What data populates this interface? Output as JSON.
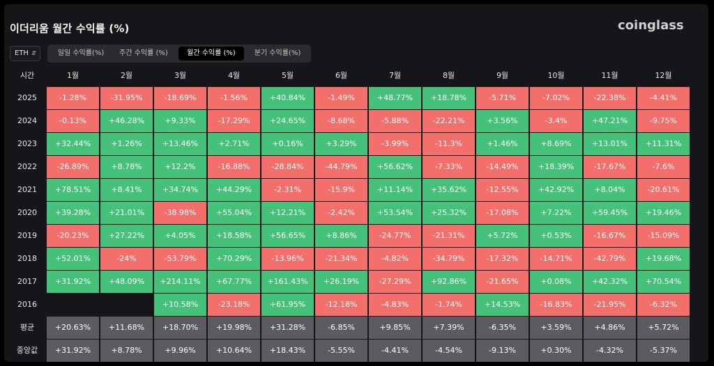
{
  "title": "이더리움 월간 수익률 (%)",
  "brand": "coinglass",
  "asset_select": {
    "value": "ETH",
    "chevron": "⌃⌄"
  },
  "tabs": [
    {
      "label": "일일 수익률(%)",
      "active": false
    },
    {
      "label": "주간 수익률 (%)",
      "active": false
    },
    {
      "label": "월간 수익률 (%)",
      "active": true
    },
    {
      "label": "분기 수익률(%)",
      "active": false
    }
  ],
  "colors": {
    "positive": "#45c17a",
    "negative": "#f26f6c",
    "summary": "#5c5c60"
  },
  "chart_data": {
    "type": "table",
    "corner_label": "시간",
    "columns": [
      "1월",
      "2월",
      "3월",
      "4월",
      "5월",
      "6월",
      "7월",
      "8월",
      "9월",
      "10월",
      "11월",
      "12월"
    ],
    "rows": [
      {
        "label": "2025",
        "values": [
          "-1.28%",
          "-31.95%",
          "-18.69%",
          "-1.56%",
          "+40.84%",
          "-1.49%",
          "+48.77%",
          "+18.78%",
          "-5.71%",
          "-7.02%",
          "-22.38%",
          "-4.41%"
        ]
      },
      {
        "label": "2024",
        "values": [
          "-0.13%",
          "+46.28%",
          "+9.33%",
          "-17.29%",
          "+24.65%",
          "-8.68%",
          "-5.88%",
          "-22.21%",
          "+3.56%",
          "-3.4%",
          "+47.21%",
          "-9.75%"
        ]
      },
      {
        "label": "2023",
        "values": [
          "+32.44%",
          "+1.26%",
          "+13.46%",
          "+2.71%",
          "+0.16%",
          "+3.29%",
          "-3.99%",
          "-11.3%",
          "+1.46%",
          "+8.69%",
          "+13.01%",
          "+11.31%"
        ]
      },
      {
        "label": "2022",
        "values": [
          "-26.89%",
          "+8.78%",
          "+12.2%",
          "-16.88%",
          "-28.84%",
          "-44.79%",
          "+56.62%",
          "-7.33%",
          "-14.49%",
          "+18.39%",
          "-17.67%",
          "-7.6%"
        ]
      },
      {
        "label": "2021",
        "values": [
          "+78.51%",
          "+8.41%",
          "+34.74%",
          "+44.29%",
          "-2.31%",
          "-15.9%",
          "+11.14%",
          "+35.62%",
          "-12.55%",
          "+42.92%",
          "+8.04%",
          "-20.61%"
        ]
      },
      {
        "label": "2020",
        "values": [
          "+39.28%",
          "+21.01%",
          "-38.98%",
          "+55.04%",
          "+12.21%",
          "-2.42%",
          "+53.54%",
          "+25.32%",
          "-17.08%",
          "+7.22%",
          "+59.45%",
          "+19.46%"
        ]
      },
      {
        "label": "2019",
        "values": [
          "-20.23%",
          "+27.22%",
          "+4.05%",
          "+18.58%",
          "+56.65%",
          "+8.86%",
          "-24.77%",
          "-21.31%",
          "+5.72%",
          "+0.53%",
          "-16.67%",
          "-15.09%"
        ]
      },
      {
        "label": "2018",
        "values": [
          "+52.01%",
          "-24%",
          "-53.79%",
          "+70.29%",
          "-13.96%",
          "-21.34%",
          "-4.82%",
          "-34.79%",
          "-17.32%",
          "-14.71%",
          "-42.79%",
          "+19.68%"
        ]
      },
      {
        "label": "2017",
        "values": [
          "+31.92%",
          "+48.09%",
          "+214.11%",
          "+67.77%",
          "+161.43%",
          "+26.19%",
          "-27.29%",
          "+92.86%",
          "-21.65%",
          "+0.08%",
          "+42.32%",
          "+70.54%"
        ]
      },
      {
        "label": "2016",
        "values": [
          "",
          "",
          "+10.58%",
          "-23.18%",
          "+61.95%",
          "-12.18%",
          "-4.83%",
          "-1.74%",
          "+14.53%",
          "-16.83%",
          "-21.95%",
          "-6.32%"
        ]
      }
    ],
    "summary_rows": [
      {
        "label": "평균",
        "values": [
          "+20.63%",
          "+11.68%",
          "+18.70%",
          "+19.98%",
          "+31.28%",
          "-6.85%",
          "+9.85%",
          "+7.39%",
          "-6.35%",
          "+3.59%",
          "+4.86%",
          "+5.72%"
        ]
      },
      {
        "label": "중앙값",
        "values": [
          "+31.92%",
          "+8.78%",
          "+9.96%",
          "+10.64%",
          "+18.43%",
          "-5.55%",
          "-4.41%",
          "-4.54%",
          "-9.13%",
          "+0.30%",
          "-4.32%",
          "-5.37%"
        ]
      }
    ]
  }
}
